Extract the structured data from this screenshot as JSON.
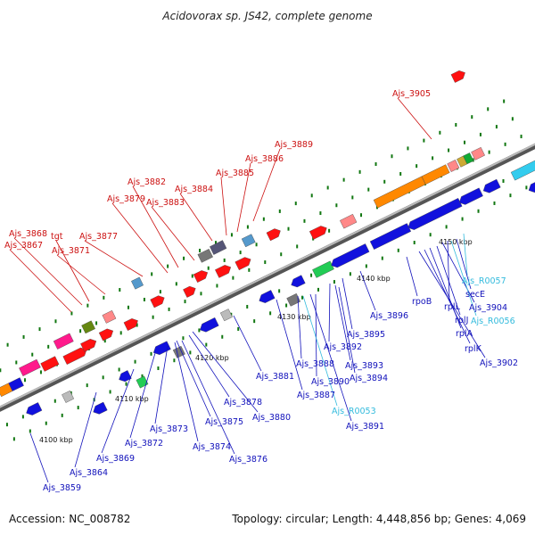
{
  "title": "Acidovorax sp. JS42, complete genome",
  "footer": {
    "accession": "Accession: NC_008782",
    "summary": "Topology: circular; Length: 4,448,856 bp; Genes: 4,069"
  },
  "colors": {
    "forward_label": "#cc1111",
    "reverse_label": "#1111bb",
    "rna_label": "#33bbdd",
    "track_dots": "#117711",
    "backbone": "#888888"
  },
  "ticks": [
    "4100 kbp",
    "4110 kbp",
    "4120 kbp",
    "4130 kbp",
    "4140 kbp",
    "4150 kbp"
  ],
  "forward_labels": [
    "Ajs_3905",
    "Ajs_3889",
    "Ajs_3886",
    "Ajs_3885",
    "Ajs_3884",
    "Ajs_3882",
    "Ajs_3883",
    "Ajs_3879",
    "Ajs_3877",
    "Ajs_3868",
    "tgt",
    "Ajs_3867",
    "Ajs_3871"
  ],
  "reverse_labels": [
    "Ajs_R0057",
    "secE",
    "rplL",
    "Ajs_3904",
    "rplJ",
    "Ajs_R0056",
    "rplA",
    "rplK",
    "Ajs_3902",
    "rpoB",
    "Ajs_3896",
    "Ajs_3895",
    "Ajs_3892",
    "Ajs_3893",
    "Ajs_3894",
    "Ajs_3890",
    "Ajs_3888",
    "Ajs_3881",
    "Ajs_3887",
    "Ajs_R0053",
    "Ajs_3891",
    "Ajs_3878",
    "Ajs_3880",
    "Ajs_3875",
    "Ajs_3873",
    "Ajs_3874",
    "Ajs_3872",
    "Ajs_3876",
    "Ajs_3869",
    "Ajs_3864",
    "Ajs_3859"
  ]
}
